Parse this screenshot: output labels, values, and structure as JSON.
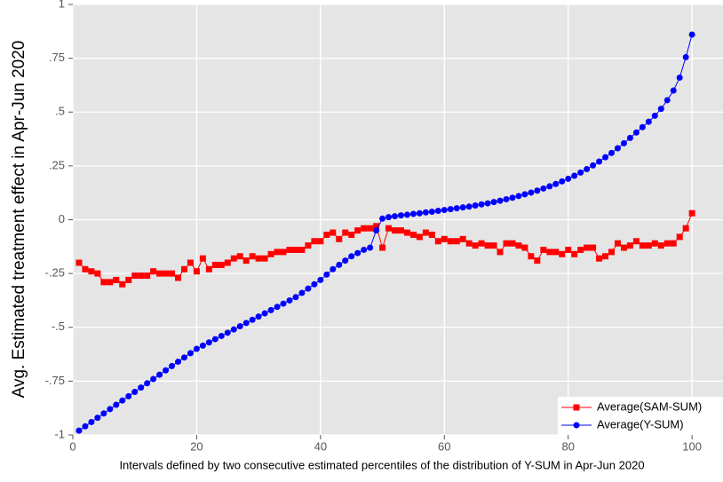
{
  "chart_data": {
    "type": "line",
    "xlabel": "Intervals defined by two consecutive estimated percentiles of the distribution of Y-SUM in Apr-Jun 2020",
    "ylabel": "Avg. Estimated treatment effect in Apr-Jun 2020",
    "x": [
      1,
      2,
      3,
      4,
      5,
      6,
      7,
      8,
      9,
      10,
      11,
      12,
      13,
      14,
      15,
      16,
      17,
      18,
      19,
      20,
      21,
      22,
      23,
      24,
      25,
      26,
      27,
      28,
      29,
      30,
      31,
      32,
      33,
      34,
      35,
      36,
      37,
      38,
      39,
      40,
      41,
      42,
      43,
      44,
      45,
      46,
      47,
      48,
      49,
      50,
      51,
      52,
      53,
      54,
      55,
      56,
      57,
      58,
      59,
      60,
      61,
      62,
      63,
      64,
      65,
      66,
      67,
      68,
      69,
      70,
      71,
      72,
      73,
      74,
      75,
      76,
      77,
      78,
      79,
      80,
      81,
      82,
      83,
      84,
      85,
      86,
      87,
      88,
      89,
      90,
      91,
      92,
      93,
      94,
      95,
      96,
      97,
      98,
      99,
      100
    ],
    "series": [
      {
        "name": "Average(SAM-SUM)",
        "color": "#ff0000",
        "marker": "square",
        "values": [
          -0.2,
          -0.23,
          -0.24,
          -0.25,
          -0.29,
          -0.29,
          -0.28,
          -0.3,
          -0.28,
          -0.26,
          -0.26,
          -0.26,
          -0.24,
          -0.25,
          -0.25,
          -0.25,
          -0.27,
          -0.23,
          -0.2,
          -0.24,
          -0.18,
          -0.23,
          -0.21,
          -0.21,
          -0.2,
          -0.18,
          -0.17,
          -0.19,
          -0.17,
          -0.18,
          -0.18,
          -0.16,
          -0.15,
          -0.15,
          -0.14,
          -0.14,
          -0.14,
          -0.12,
          -0.1,
          -0.1,
          -0.07,
          -0.06,
          -0.09,
          -0.06,
          -0.07,
          -0.05,
          -0.04,
          -0.04,
          -0.03,
          -0.13,
          -0.04,
          -0.05,
          -0.05,
          -0.06,
          -0.07,
          -0.08,
          -0.06,
          -0.07,
          -0.1,
          -0.09,
          -0.1,
          -0.1,
          -0.09,
          -0.11,
          -0.12,
          -0.11,
          -0.12,
          -0.12,
          -0.15,
          -0.11,
          -0.11,
          -0.12,
          -0.13,
          -0.17,
          -0.19,
          -0.14,
          -0.15,
          -0.15,
          -0.16,
          -0.14,
          -0.16,
          -0.14,
          -0.13,
          -0.13,
          -0.18,
          -0.17,
          -0.15,
          -0.11,
          -0.13,
          -0.12,
          -0.1,
          -0.12,
          -0.12,
          -0.11,
          -0.12,
          -0.11,
          -0.11,
          -0.08,
          -0.04,
          0.03
        ]
      },
      {
        "name": "Average(Y-SUM)",
        "color": "#0000ff",
        "marker": "circle",
        "values": [
          -0.98,
          -0.96,
          -0.94,
          -0.92,
          -0.9,
          -0.88,
          -0.86,
          -0.84,
          -0.82,
          -0.8,
          -0.78,
          -0.76,
          -0.74,
          -0.72,
          -0.7,
          -0.68,
          -0.66,
          -0.64,
          -0.62,
          -0.6,
          -0.585,
          -0.57,
          -0.555,
          -0.54,
          -0.525,
          -0.51,
          -0.495,
          -0.48,
          -0.465,
          -0.45,
          -0.435,
          -0.42,
          -0.405,
          -0.39,
          -0.375,
          -0.36,
          -0.34,
          -0.32,
          -0.3,
          -0.28,
          -0.255,
          -0.23,
          -0.21,
          -0.19,
          -0.17,
          -0.155,
          -0.14,
          -0.13,
          -0.05,
          0.005,
          0.012,
          0.016,
          0.02,
          0.023,
          0.027,
          0.03,
          0.034,
          0.037,
          0.041,
          0.045,
          0.049,
          0.053,
          0.057,
          0.061,
          0.066,
          0.071,
          0.076,
          0.082,
          0.088,
          0.095,
          0.102,
          0.11,
          0.118,
          0.126,
          0.135,
          0.145,
          0.155,
          0.166,
          0.178,
          0.19,
          0.204,
          0.219,
          0.235,
          0.252,
          0.27,
          0.29,
          0.31,
          0.332,
          0.355,
          0.38,
          0.405,
          0.43,
          0.455,
          0.483,
          0.515,
          0.555,
          0.6,
          0.66,
          0.755,
          0.86
        ]
      }
    ],
    "xlim": [
      0,
      105
    ],
    "ylim": [
      -1,
      1
    ],
    "xticks": [
      0,
      20,
      40,
      60,
      80,
      100
    ],
    "yticks": [
      {
        "value": -1,
        "label": "-1"
      },
      {
        "value": -0.75,
        "label": "-.75"
      },
      {
        "value": -0.5,
        "label": "-.5"
      },
      {
        "value": -0.25,
        "label": "-.25"
      },
      0,
      {
        "value": 0.25,
        "label": ".25"
      },
      {
        "value": 0.5,
        "label": ".5"
      },
      {
        "value": 0.75,
        "label": ".75"
      },
      1
    ],
    "grid": true,
    "legend": "lower right",
    "background": "#e5e5e5"
  }
}
